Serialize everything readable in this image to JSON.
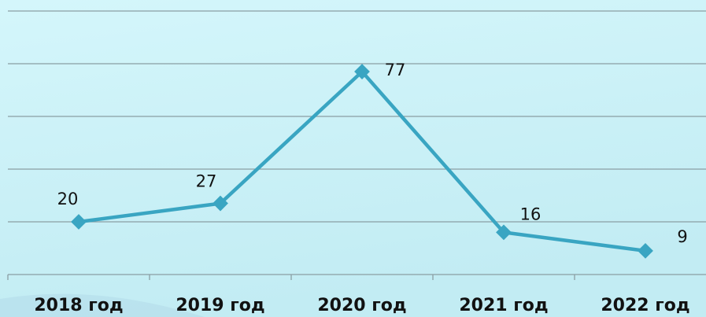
{
  "chart_data": {
    "type": "line",
    "categories": [
      "2018 год",
      "2019 год",
      "2020 год",
      "2021 год",
      "2022 год"
    ],
    "series": [
      {
        "color": "#39a5c2",
        "values": [
          20,
          27,
          77,
          16,
          9
        ]
      }
    ],
    "ylim": [
      0,
      100
    ],
    "yticks": [
      0,
      20,
      40,
      60,
      80,
      100
    ],
    "grid": true
  }
}
